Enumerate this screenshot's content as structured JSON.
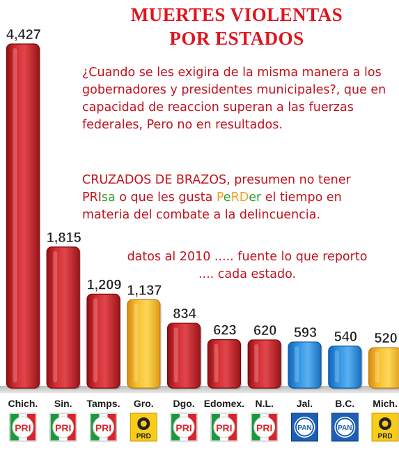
{
  "title_lines": [
    "MUERTES VIOLENTAS",
    "POR ESTADOS"
  ],
  "commentary": {
    "paragraph1": "¿Cuando se les exigira de la misma manera a los gobernadores y presidentes municipales?, que en capacidad de reaccion superan a las fuerzas federales, Pero no en resultados.",
    "paragraph2": {
      "line1": "CRUZADOS DE BRAZOS, presumen no tener",
      "line2_parts": [
        "PRI",
        "sa",
        " o que les gusta ",
        "P",
        "e",
        "RD",
        "er",
        " el tiempo en"
      ],
      "line3": "materia del combate a la delincuencia."
    },
    "note_lines": [
      "datos al 2010 ..... fuente lo que reporto",
      ".... cada estado."
    ]
  },
  "colors": {
    "PRI": "#d42a30",
    "PRD": "#f6b624",
    "PAN": "#2a8fdb",
    "title": "#e0141e",
    "text": "#c1121c"
  },
  "chart_data": {
    "type": "bar",
    "categories": [
      "Chich.",
      "Sin.",
      "Tamps.",
      "Gro.",
      "Dgo.",
      "Edomex.",
      "N.L.",
      "Jal.",
      "B.C.",
      "Mich."
    ],
    "values": [
      4427,
      1815,
      1209,
      1137,
      834,
      623,
      620,
      593,
      540,
      520
    ],
    "value_labels": [
      "4,427",
      "1,815",
      "1,209",
      "1,137",
      "834",
      "623",
      "620",
      "593",
      "540",
      "520"
    ],
    "parties": [
      "PRI",
      "PRI",
      "PRI",
      "PRD",
      "PRI",
      "PRI",
      "PRI",
      "PAN",
      "PAN",
      "PRD"
    ],
    "party_labels": {
      "PRI": "PRI",
      "PRD": "PRD",
      "PAN": "PAN"
    },
    "ylim": [
      0,
      4427
    ]
  }
}
